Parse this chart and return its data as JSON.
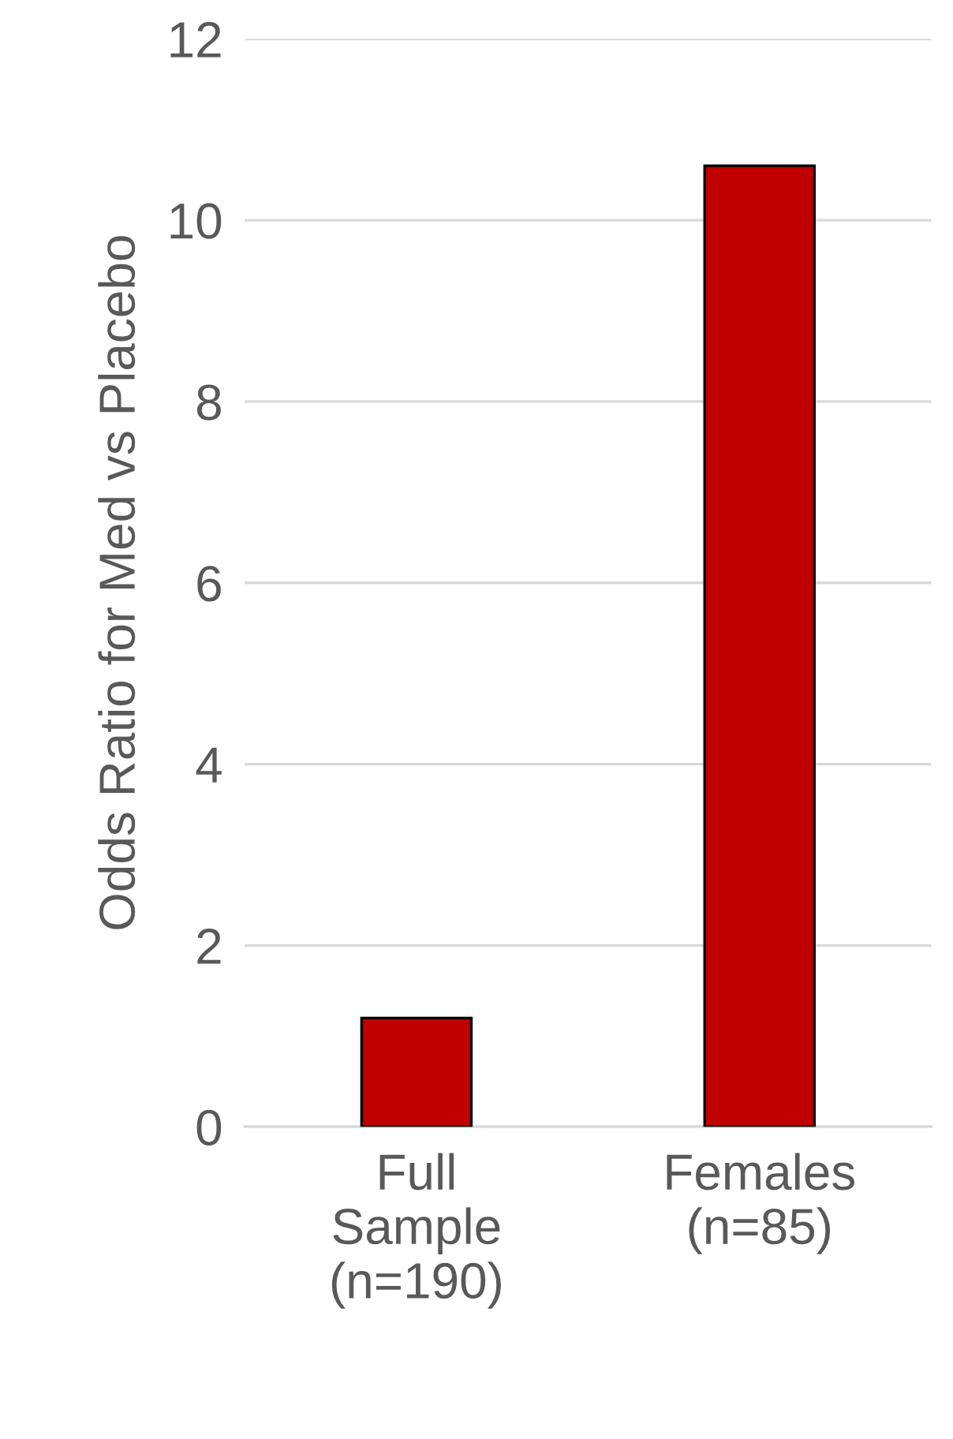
{
  "chart_data": {
    "type": "bar",
    "ylabel": "Odds Ratio for Med vs Placebo",
    "categories": [
      "Full\nSample\n(n=190)",
      "Females\n(n=85)"
    ],
    "values": [
      1.2,
      10.6
    ],
    "color": "#c00000",
    "ylim": [
      0,
      12
    ],
    "yticks": [
      0,
      2,
      4,
      6,
      8,
      10,
      12
    ],
    "grid": "y",
    "legend": false
  }
}
